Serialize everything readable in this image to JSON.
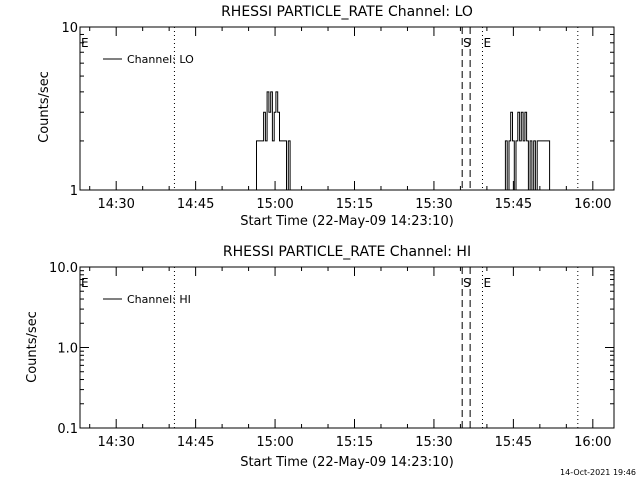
{
  "chart_data": [
    {
      "type": "line",
      "title": "RHESSI PARTICLE_RATE Channel: LO",
      "xlabel": "Start Time (22-May-09 14:23:10)",
      "ylabel": "Counts/sec",
      "y_scale": "log",
      "ylim": [
        1,
        10
      ],
      "xlim": [
        "14:23:10",
        "16:04:00"
      ],
      "xticks": [
        "14:30",
        "14:45",
        "15:00",
        "15:15",
        "15:30",
        "15:45",
        "16:00"
      ],
      "yticks": [
        "1",
        "10"
      ],
      "grid": false,
      "legend_position": "top-left",
      "series": [
        {
          "name": "Channel: LO",
          "style": "solid",
          "color": "#000000",
          "segments": [
            [
              [
                "14:56:10",
                1
              ],
              [
                "14:56:30",
                2
              ],
              [
                "14:57:30",
                2
              ],
              [
                "14:57:50",
                3
              ],
              [
                "14:58:10",
                2
              ],
              [
                "14:58:30",
                4
              ],
              [
                "14:58:50",
                3
              ],
              [
                "14:59:10",
                4
              ],
              [
                "14:59:30",
                2
              ],
              [
                "14:59:50",
                3
              ],
              [
                "15:00:10",
                4
              ],
              [
                "15:00:30",
                3
              ],
              [
                "15:00:50",
                2
              ],
              [
                "15:01:50",
                2
              ],
              [
                "15:02:10",
                1
              ],
              [
                "15:02:30",
                2
              ],
              [
                "15:02:50",
                1
              ]
            ],
            [
              [
                "15:43:10",
                1
              ],
              [
                "15:43:30",
                2
              ],
              [
                "15:43:50",
                1
              ],
              [
                "15:44:10",
                2
              ],
              [
                "15:44:30",
                3
              ],
              [
                "15:44:50",
                2
              ],
              [
                "15:45:10",
                1
              ],
              [
                "15:45:30",
                2
              ],
              [
                "15:45:50",
                3
              ],
              [
                "15:46:10",
                2
              ],
              [
                "15:46:30",
                3
              ],
              [
                "15:46:50",
                2
              ],
              [
                "15:47:10",
                3
              ],
              [
                "15:47:30",
                2
              ],
              [
                "15:47:50",
                1
              ],
              [
                "15:48:10",
                2
              ],
              [
                "15:48:30",
                1
              ],
              [
                "15:48:50",
                2
              ],
              [
                "15:49:10",
                1
              ],
              [
                "15:49:30",
                2
              ],
              [
                "15:51:30",
                2
              ],
              [
                "15:51:50",
                1
              ]
            ]
          ]
        }
      ],
      "markers": [
        {
          "label": "E",
          "time": "14:23:10",
          "style": "dotted"
        },
        {
          "label": "",
          "time": "14:41:00",
          "style": "dotted"
        },
        {
          "label": "S",
          "time": "15:35:20",
          "style": "dashed"
        },
        {
          "label": "",
          "time": "15:36:50",
          "style": "dashed"
        },
        {
          "label": "E",
          "time": "15:39:10",
          "style": "dotted"
        },
        {
          "label": "",
          "time": "15:57:10",
          "style": "dotted"
        }
      ]
    },
    {
      "type": "line",
      "title": "RHESSI PARTICLE_RATE Channel: HI",
      "xlabel": "Start Time (22-May-09 14:23:10)",
      "ylabel": "Counts/sec",
      "y_scale": "log",
      "ylim": [
        0.1,
        10
      ],
      "xlim": [
        "14:23:10",
        "16:04:00"
      ],
      "xticks": [
        "14:30",
        "14:45",
        "15:00",
        "15:15",
        "15:30",
        "15:45",
        "16:00"
      ],
      "yticks": [
        "0.1",
        "1.0",
        "10.0"
      ],
      "grid": false,
      "legend_position": "top-left",
      "series": [
        {
          "name": "Channel: HI",
          "style": "solid",
          "color": "#000000",
          "segments": []
        }
      ],
      "markers": [
        {
          "label": "E",
          "time": "14:23:10",
          "style": "dotted"
        },
        {
          "label": "",
          "time": "14:41:00",
          "style": "dotted"
        },
        {
          "label": "S",
          "time": "15:35:20",
          "style": "dashed"
        },
        {
          "label": "",
          "time": "15:36:50",
          "style": "dashed"
        },
        {
          "label": "E",
          "time": "15:39:10",
          "style": "dotted"
        },
        {
          "label": "",
          "time": "15:57:10",
          "style": "dotted"
        }
      ]
    }
  ],
  "footer": {
    "timestamp": "14-Oct-2021 19:46"
  }
}
